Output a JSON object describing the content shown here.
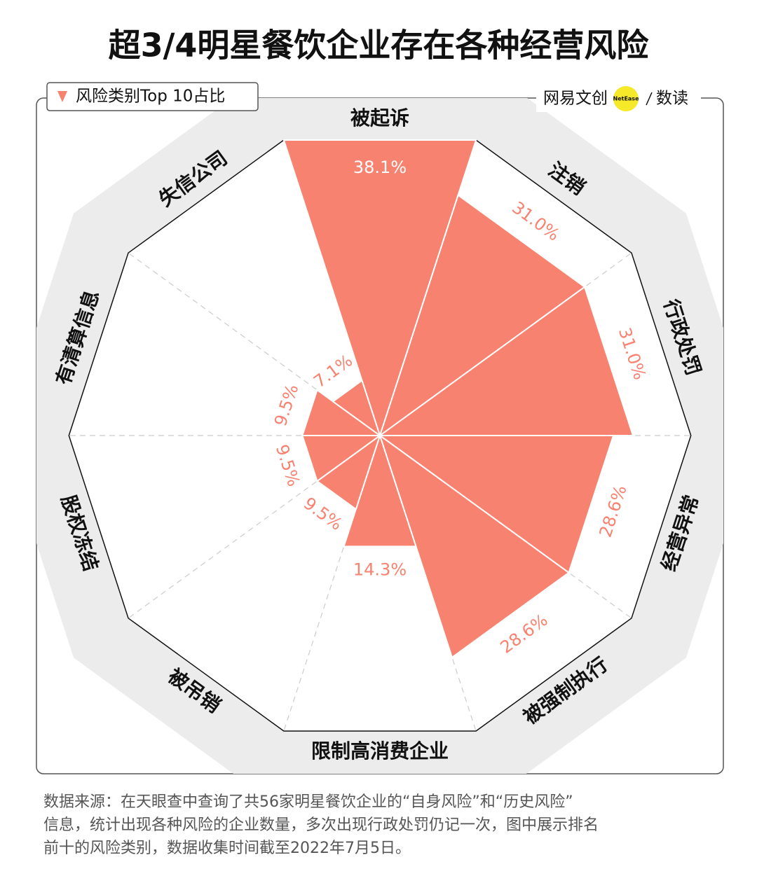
{
  "chart_data": {
    "type": "polar-area",
    "title": "超3/4明星餐饮企业存在各种经营风险",
    "legend_title": "风险类别Top 10占比",
    "brand": "网易文创",
    "brand_badge": "NetEase",
    "brand_section": "数读",
    "categories": [
      "被起诉",
      "注销",
      "行政处罚",
      "经营异常",
      "被强制执行",
      "限制高消费企业",
      "被吊销",
      "股权冻结",
      "有清算信息",
      "失信公司"
    ],
    "values": [
      38.1,
      31.0,
      31.0,
      28.6,
      28.6,
      14.3,
      9.5,
      9.5,
      9.5,
      7.1
    ],
    "value_labels": [
      "38.1%",
      "31.0%",
      "31.0%",
      "28.6%",
      "28.6%",
      "14.3%",
      "9.5%",
      "9.5%",
      "9.5%",
      "7.1%"
    ],
    "color": "#f88270",
    "ylim": [
      0,
      38.1
    ],
    "footnote": [
      "数据来源：在天眼查中查询了共56家明星餐饮企业的“自身风险”和“历史风险”",
      "信息，统计出现各种风险的企业数量，多次出现行政处罚仍记一次，图中展示排名",
      "前十的风险类别，数据收集时间截至2022年7月5日。"
    ]
  }
}
